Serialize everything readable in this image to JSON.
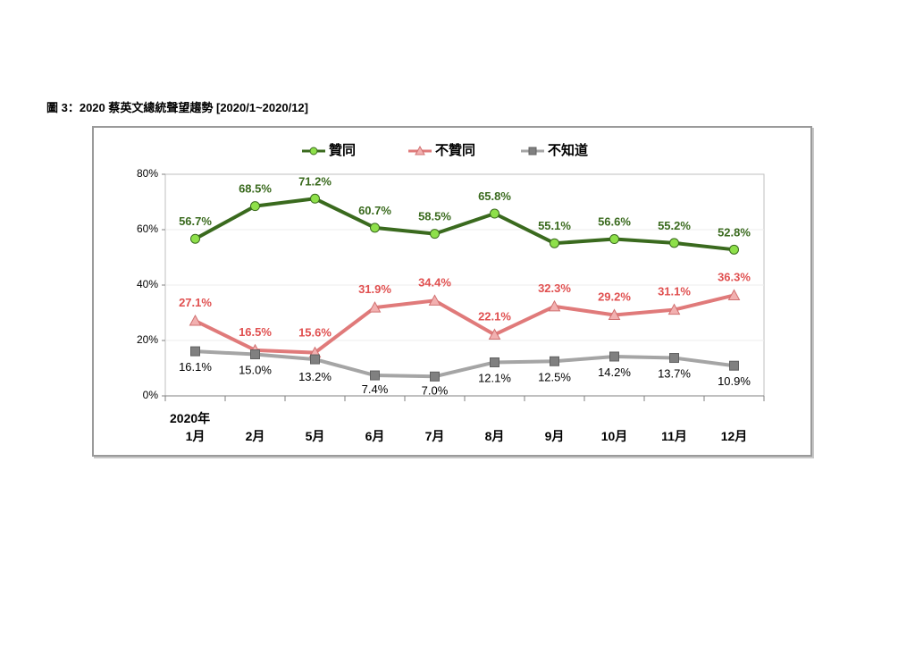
{
  "caption": "圖 3：2020 蔡英文總統聲望趨勢 [2020/1~2020/12]",
  "chart_data": {
    "type": "line",
    "year_label": "2020年",
    "categories": [
      "1月",
      "2月",
      "5月",
      "6月",
      "7月",
      "8月",
      "9月",
      "10月",
      "11月",
      "12月"
    ],
    "ylim": [
      0,
      80
    ],
    "yticks": [
      "0%",
      "20%",
      "40%",
      "60%",
      "80%"
    ],
    "grid": true,
    "legend_position": "top",
    "series": [
      {
        "name": "贊同",
        "color": "#3a6a1e",
        "marker": "circle",
        "marker_color": "#8ee04a",
        "label_color": "#3a6a1e",
        "label_bold": true,
        "values": [
          56.7,
          68.5,
          71.2,
          60.7,
          58.5,
          65.8,
          55.1,
          56.6,
          55.2,
          52.8
        ],
        "labels": [
          "56.7%",
          "68.5%",
          "71.2%",
          "60.7%",
          "58.5%",
          "65.8%",
          "55.1%",
          "56.6%",
          "55.2%",
          "52.8%"
        ]
      },
      {
        "name": "不贊同",
        "color": "#e07a7a",
        "marker": "triangle",
        "marker_color": "#f2b0b0",
        "label_color": "#e05050",
        "label_bold": true,
        "values": [
          27.1,
          16.5,
          15.6,
          31.9,
          34.4,
          22.1,
          32.3,
          29.2,
          31.1,
          36.3
        ],
        "labels": [
          "27.1%",
          "16.5%",
          "15.6%",
          "31.9%",
          "34.4%",
          "22.1%",
          "32.3%",
          "29.2%",
          "31.1%",
          "36.3%"
        ]
      },
      {
        "name": "不知道",
        "color": "#a5a5a5",
        "marker": "square",
        "marker_color": "#808080",
        "label_color": "#000000",
        "label_bold": false,
        "values": [
          16.1,
          15.0,
          13.2,
          7.4,
          7.0,
          12.1,
          12.5,
          14.2,
          13.7,
          10.9
        ],
        "labels": [
          "16.1%",
          "15.0%",
          "13.2%",
          "7.4%",
          "7.0%",
          "12.1%",
          "12.5%",
          "14.2%",
          "13.7%",
          "10.9%"
        ]
      }
    ]
  }
}
